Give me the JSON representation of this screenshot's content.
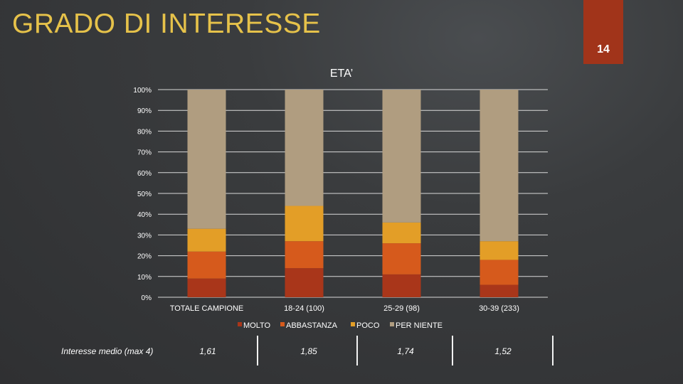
{
  "slide": {
    "title": "GRADO DI INTERESSE",
    "page_number": "14"
  },
  "colors": {
    "title": "#e6c24a",
    "tab": "#a1341a",
    "series": [
      "#a9361a",
      "#d65a1c",
      "#e39e27",
      "#b09d80"
    ]
  },
  "chart_data": {
    "type": "bar",
    "stacked": true,
    "title": "ETA’",
    "categories": [
      "TOTALE CAMPIONE",
      "18-24 (100)",
      "25-29 (98)",
      "30-39 (233)"
    ],
    "series": [
      {
        "name": "MOLTO",
        "values": [
          9,
          14,
          11,
          6
        ]
      },
      {
        "name": "ABBASTANZA",
        "values": [
          13,
          13,
          15,
          12
        ]
      },
      {
        "name": "POCO",
        "values": [
          11,
          17,
          10,
          9
        ]
      },
      {
        "name": "PER NIENTE",
        "values": [
          67,
          56,
          64,
          73
        ]
      }
    ],
    "yticks": [
      "0%",
      "10%",
      "20%",
      "30%",
      "40%",
      "50%",
      "60%",
      "70%",
      "80%",
      "90%",
      "100%"
    ],
    "ylim": [
      0,
      100
    ],
    "grid": true,
    "legend": "bottom"
  },
  "footer": {
    "label": "Interesse medio (max 4)",
    "values": [
      "1,61",
      "1,85",
      "1,74",
      "1,52"
    ]
  }
}
